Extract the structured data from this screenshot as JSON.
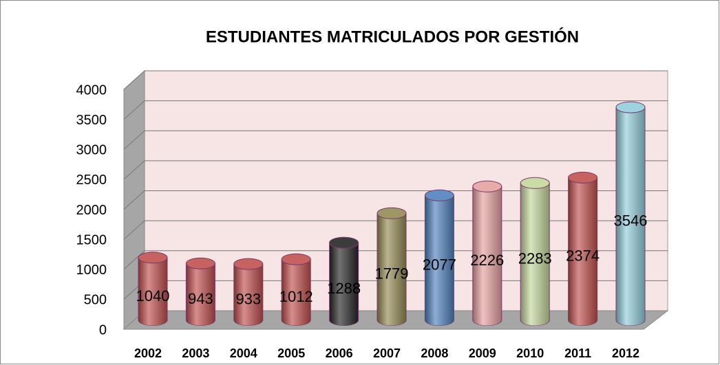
{
  "chart_data": {
    "type": "bar",
    "title": "ESTUDIANTES MATRICULADOS POR GESTIÓN",
    "categories": [
      "2002",
      "2003",
      "2004",
      "2005",
      "2006",
      "2007",
      "2008",
      "2009",
      "2010",
      "2011",
      "2012"
    ],
    "values": [
      1040,
      943,
      933,
      1012,
      1288,
      1779,
      2077,
      2226,
      2283,
      2374,
      3546
    ],
    "colors": [
      "#c0504d",
      "#c0504d",
      "#c0504d",
      "#c0504d",
      "#262626",
      "#948a54",
      "#4f81bd",
      "#e6a1a0",
      "#c4d79b",
      "#c0504d",
      "#92cddc"
    ],
    "ylim": [
      0,
      4000
    ],
    "yticks": [
      0,
      500,
      1000,
      1500,
      2000,
      2500,
      3000,
      3500,
      4000
    ],
    "grid": true
  }
}
